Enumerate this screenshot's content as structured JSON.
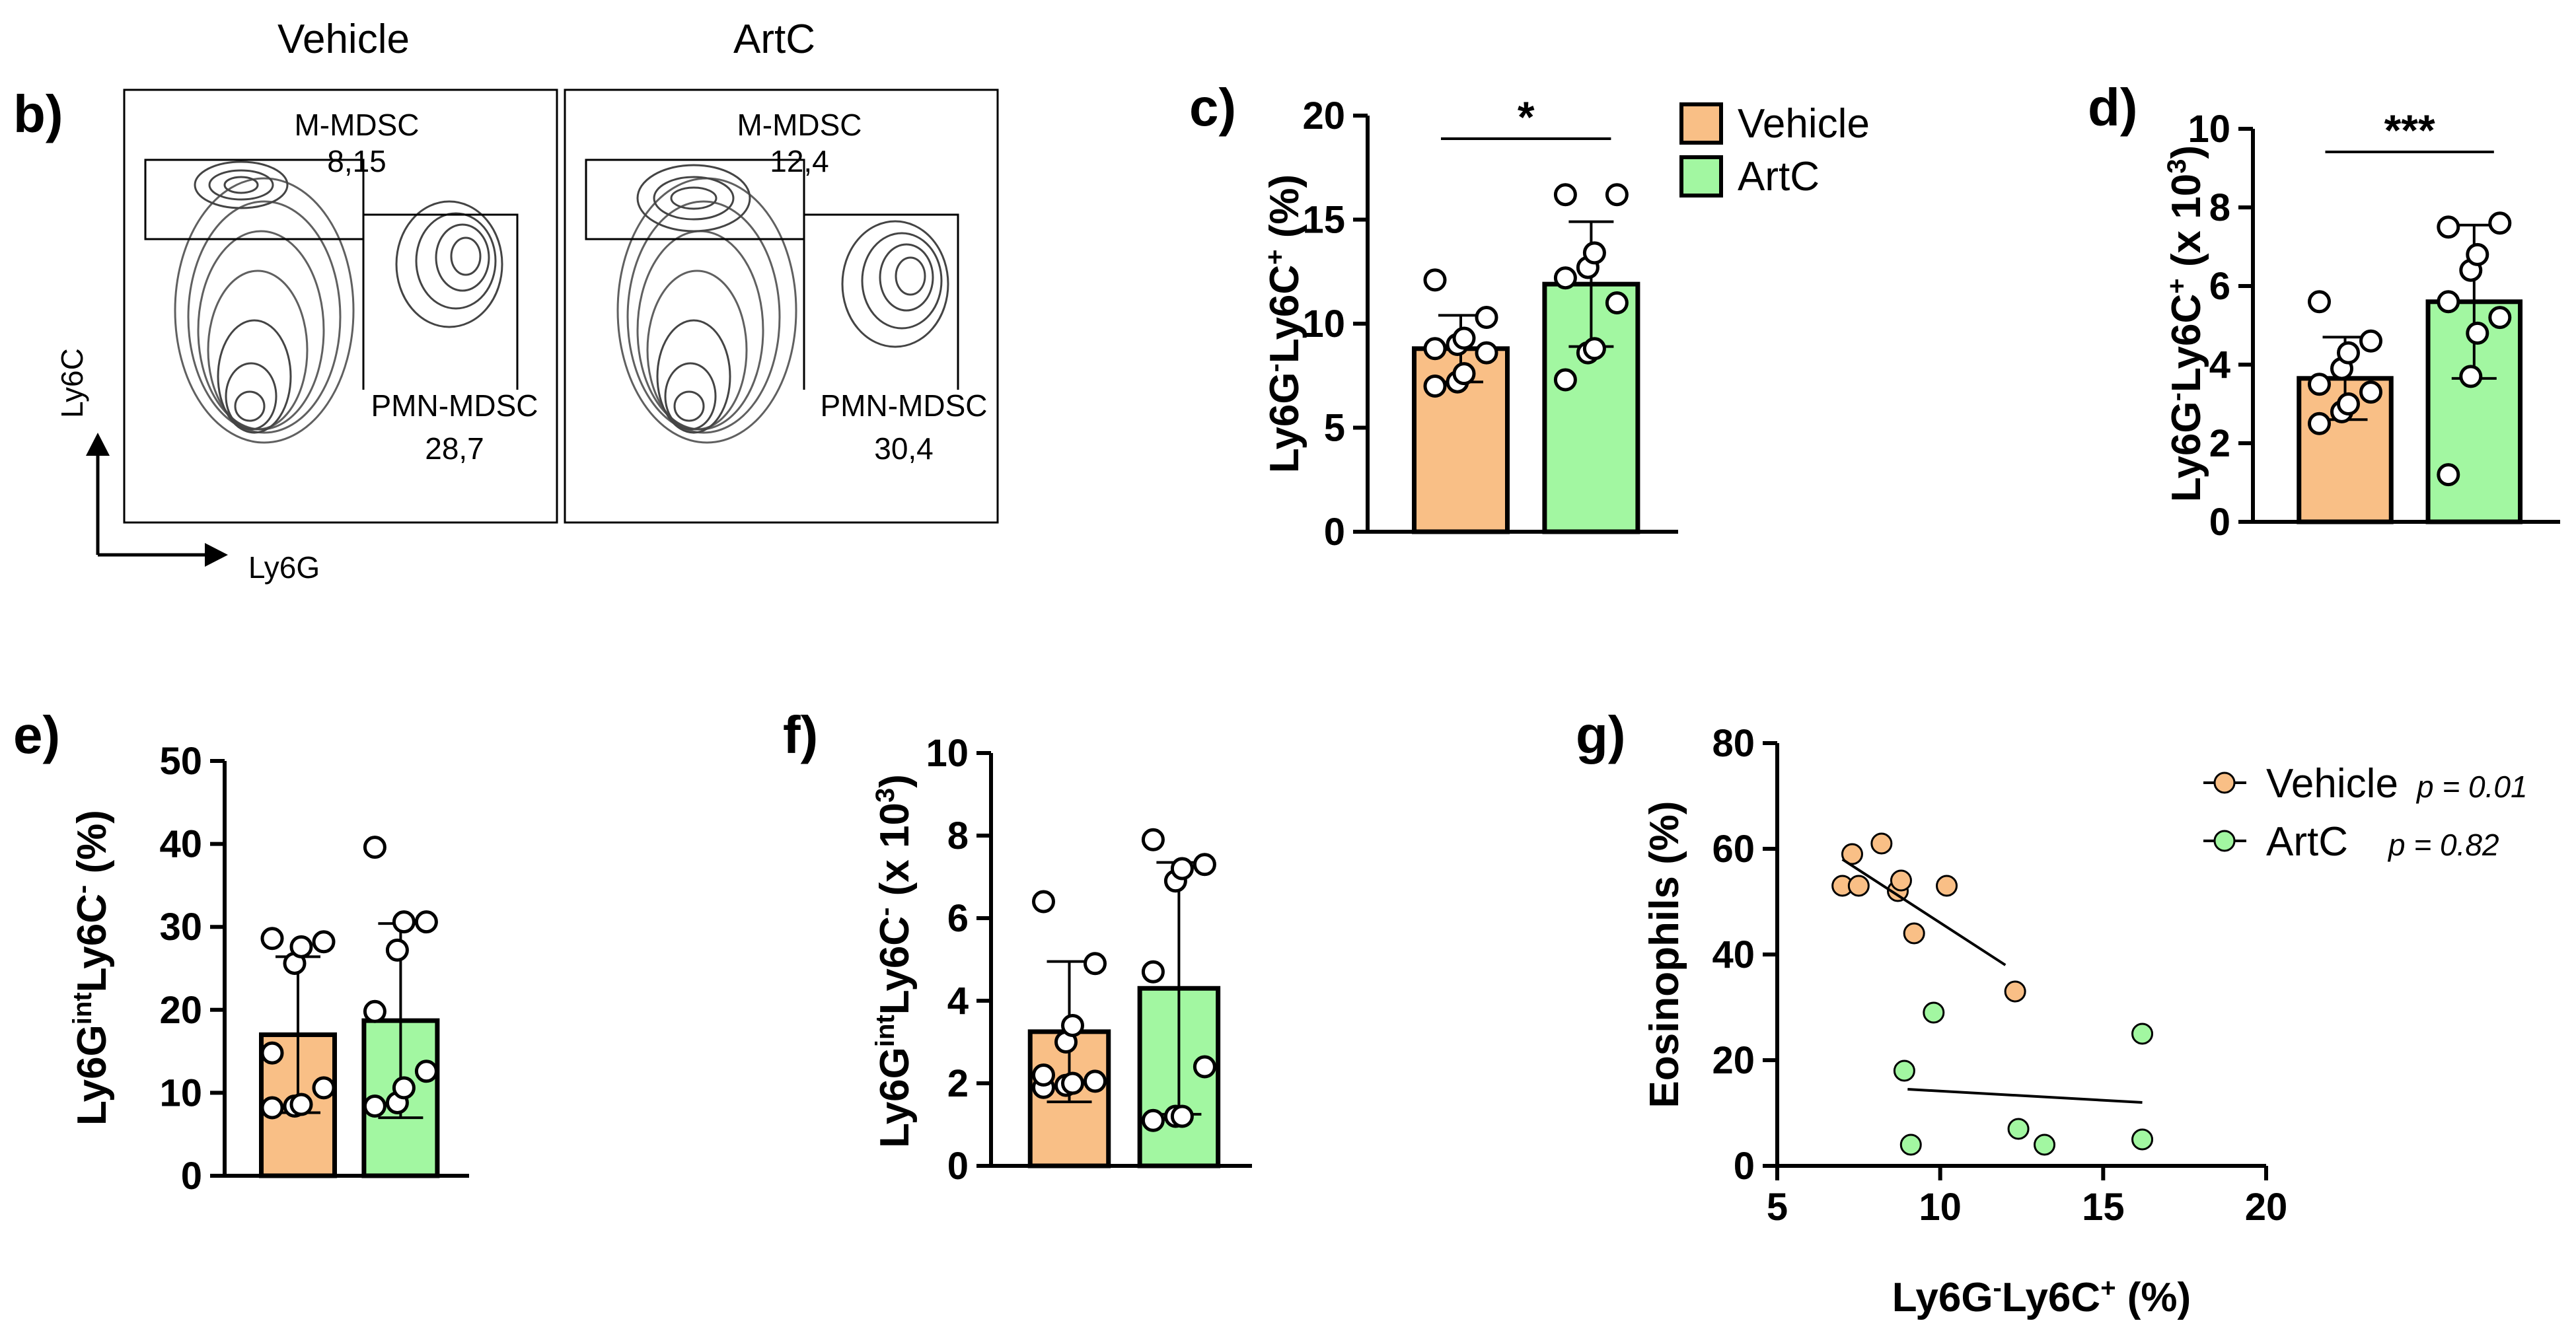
{
  "colors": {
    "vehicle": "#f9bf86",
    "artc": "#a2f7a1",
    "axis": "#000000"
  },
  "panel_b": {
    "label": "b)",
    "col_titles": [
      "Vehicle",
      "ArtC"
    ],
    "y_axis": "Ly6C",
    "x_axis": "Ly6G",
    "gates": [
      {
        "m_label": "M-MDSC",
        "m_value": "8,15",
        "p_label": "PMN-MDSC",
        "p_value": "28,7"
      },
      {
        "m_label": "M-MDSC",
        "m_value": "12,4",
        "p_label": "PMN-MDSC",
        "p_value": "30,4"
      }
    ]
  },
  "chart_data": [
    {
      "id": "c",
      "label": "c)",
      "type": "bar",
      "ylabel_base": "Ly6G",
      "ylabel_sup1": "-",
      "ylabel_mid": "Ly6C",
      "ylabel_sup2": "+",
      "ylabel_tail": " (%)",
      "ylim": [
        0,
        20
      ],
      "yticks": [
        "0",
        "5",
        "10",
        "15",
        "20"
      ],
      "categories": [
        "Vehicle",
        "ArtC"
      ],
      "means": [
        8.8,
        11.9
      ],
      "sd": [
        1.6,
        3.0
      ],
      "points": [
        [
          7.0,
          7.2,
          7.6,
          8.6,
          8.8,
          9.0,
          9.3,
          10.3,
          12.1
        ],
        [
          7.3,
          8.6,
          8.8,
          11.0,
          12.2,
          12.7,
          13.4,
          16.2,
          16.2
        ]
      ],
      "significance": "*"
    },
    {
      "id": "d",
      "label": "d)",
      "type": "bar",
      "ylabel_base": "Ly6G",
      "ylabel_sup1": "-",
      "ylabel_mid": "Ly6C",
      "ylabel_sup2": "+",
      "ylabel_tail": " (x 10",
      "ylabel_sup3": "3",
      "ylabel_end": ")",
      "ylim": [
        0,
        10
      ],
      "yticks": [
        "0",
        "2",
        "4",
        "6",
        "8",
        "10"
      ],
      "categories": [
        "Vehicle",
        "ArtC"
      ],
      "means": [
        3.65,
        5.6
      ],
      "sd": [
        1.05,
        1.95
      ],
      "points": [
        [
          2.5,
          2.8,
          3.0,
          3.3,
          3.5,
          3.9,
          4.3,
          4.6,
          5.6
        ],
        [
          1.2,
          3.7,
          4.8,
          5.2,
          5.6,
          6.4,
          6.8,
          7.6,
          7.5
        ]
      ],
      "significance": "***"
    },
    {
      "id": "e",
      "label": "e)",
      "type": "bar",
      "ylabel_base": "Ly6G",
      "ylabel_sup1": "int",
      "ylabel_mid": "Ly6C",
      "ylabel_sup2": "-",
      "ylabel_tail": " (%)",
      "ylim": [
        0,
        50
      ],
      "yticks": [
        "0",
        "10",
        "20",
        "30",
        "40",
        "50"
      ],
      "categories": [
        "Vehicle",
        "ArtC"
      ],
      "means": [
        17.0,
        18.7
      ],
      "sd": [
        9.4,
        11.7
      ],
      "points": [
        [
          8.2,
          8.4,
          8.6,
          10.6,
          14.8,
          25.6,
          27.6,
          28.2,
          28.6
        ],
        [
          8.4,
          8.8,
          10.6,
          12.6,
          19.8,
          27.2,
          30.6,
          30.6,
          39.6
        ]
      ],
      "significance": ""
    },
    {
      "id": "f",
      "label": "f)",
      "type": "bar",
      "ylabel_base": "Ly6G",
      "ylabel_sup1": "int",
      "ylabel_mid": "Ly6C",
      "ylabel_sup2": "-",
      "ylabel_tail": " (x 10",
      "ylabel_sup3": "3",
      "ylabel_end": ")",
      "ylim": [
        0,
        10
      ],
      "yticks": [
        "0",
        "2",
        "4",
        "6",
        "8",
        "10"
      ],
      "categories": [
        "Vehicle",
        "ArtC"
      ],
      "means": [
        3.25,
        4.3
      ],
      "sd": [
        1.7,
        3.05
      ],
      "points": [
        [
          1.9,
          1.95,
          2.0,
          2.05,
          2.2,
          3.0,
          3.4,
          4.9,
          6.4
        ],
        [
          1.1,
          1.2,
          1.2,
          2.4,
          4.7,
          6.9,
          7.2,
          7.3,
          7.9
        ]
      ],
      "significance": ""
    },
    {
      "id": "g",
      "label": "g)",
      "type": "scatter",
      "xlabel_base": "Ly6G",
      "xlabel_sup1": "-",
      "xlabel_mid": "Ly6C",
      "xlabel_sup2": "+",
      "xlabel_tail": " (%)",
      "ylabel": "Eosinophils (%)",
      "xlim": [
        5,
        20
      ],
      "ylim": [
        0,
        80
      ],
      "xticks": [
        "5",
        "10",
        "15",
        "20"
      ],
      "yticks": [
        "0",
        "20",
        "40",
        "60",
        "80"
      ],
      "legend_position": "top-right",
      "series": [
        {
          "name": "Vehicle",
          "p": "p = 0.01",
          "x": [
            7.0,
            7.3,
            7.5,
            8.2,
            8.7,
            8.8,
            9.2,
            10.2,
            12.3
          ],
          "y": [
            53,
            59,
            53,
            61,
            52,
            54,
            44,
            53,
            33
          ],
          "fit": [
            [
              7.0,
              58
            ],
            [
              12.0,
              38
            ]
          ]
        },
        {
          "name": "ArtC",
          "p": "p = 0.82",
          "x": [
            8.9,
            9.1,
            9.8,
            12.4,
            13.2,
            16.2,
            16.2
          ],
          "y": [
            18,
            4,
            29,
            7,
            4,
            25,
            5
          ],
          "fit": [
            [
              9.0,
              14.5
            ],
            [
              16.2,
              12.0
            ]
          ]
        }
      ]
    }
  ]
}
